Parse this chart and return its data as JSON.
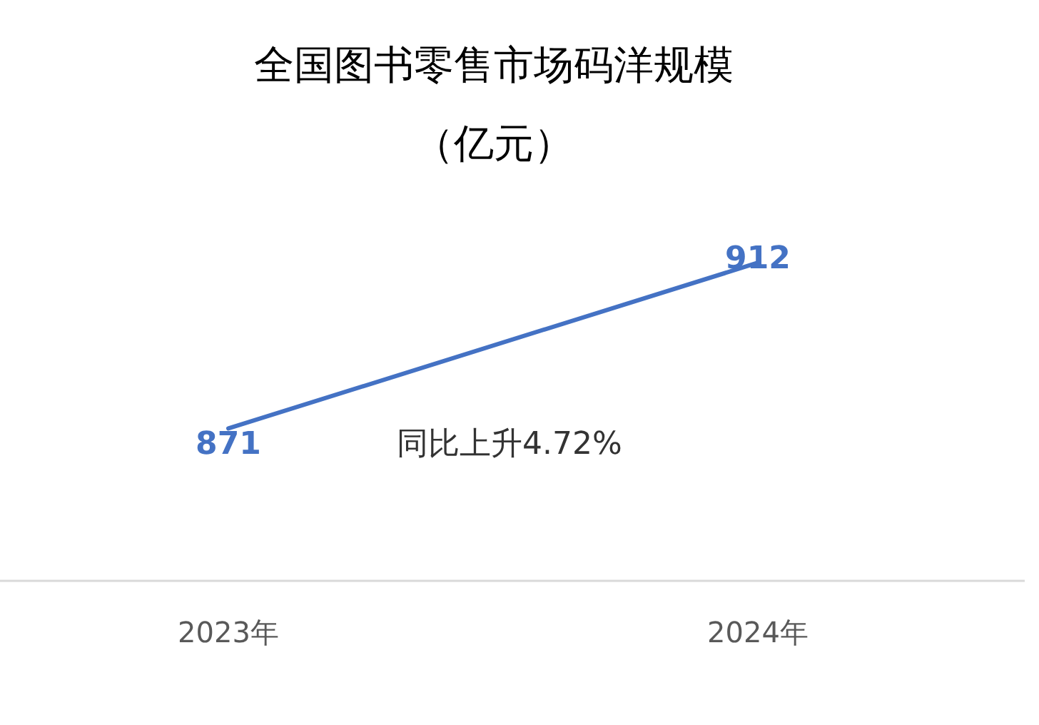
{
  "chart_data": {
    "type": "line",
    "title": "全国图书零售市场码洋规模",
    "subtitle": "（亿元）",
    "categories": [
      "2023年",
      "2024年"
    ],
    "series": [
      {
        "color": "#4472c4",
        "values": [
          871,
          912
        ]
      }
    ],
    "data_labels": true,
    "tick_labels": "x",
    "annotations": [
      "同比上升4.72%"
    ]
  }
}
